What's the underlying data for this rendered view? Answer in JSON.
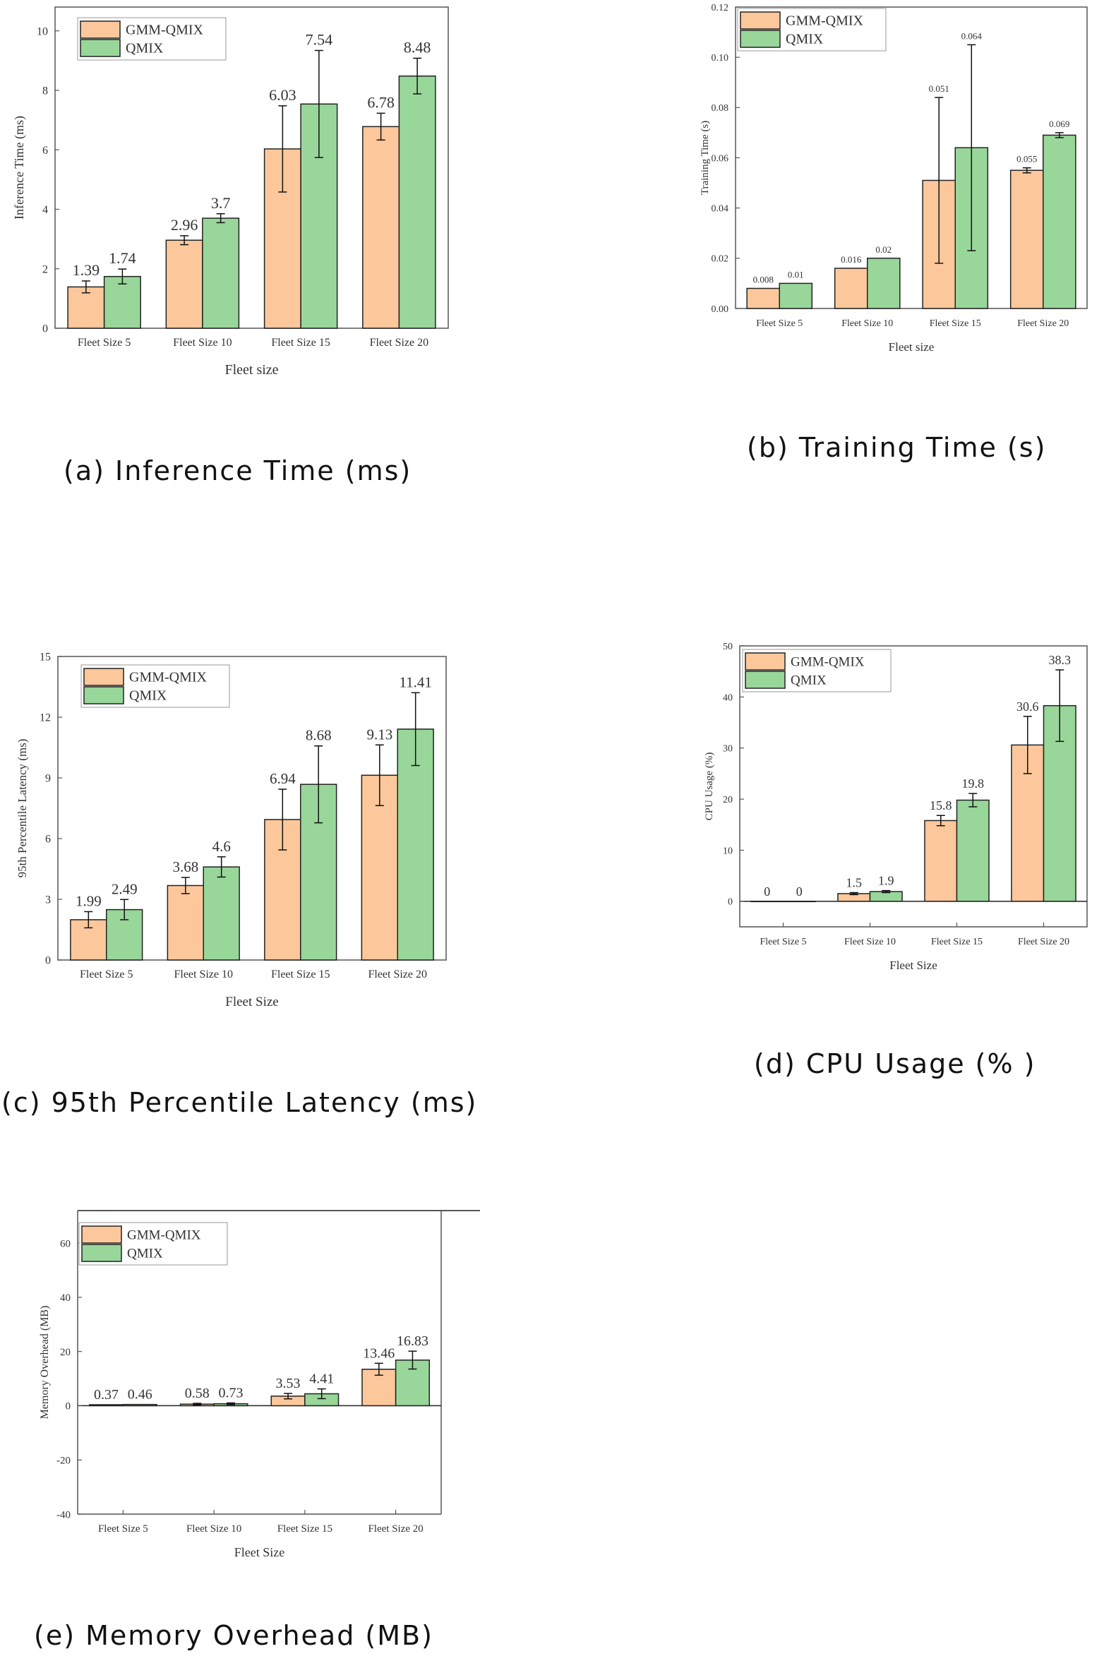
{
  "colors": {
    "gmm": "#fcc89b",
    "qmix": "#98d69a",
    "axis": "#555555"
  },
  "chart_data": [
    {
      "id": "a",
      "type": "bar",
      "title": "",
      "caption": "(a) Inference Time (ms)",
      "xlabel": "Fleet size",
      "ylabel": "Inference Time (ms)",
      "categories": [
        "Fleet Size 5",
        "Fleet Size 10",
        "Fleet Size 15",
        "Fleet Size 20"
      ],
      "ylim": [
        0,
        10.8
      ],
      "yticks": [
        "0",
        "2",
        "4",
        "6",
        "8",
        "10"
      ],
      "ytick_values": [
        0,
        2,
        4,
        6,
        8,
        10
      ],
      "legend": [
        "GMM-QMIX",
        "QMIX"
      ],
      "legend_position": "top-left",
      "series": [
        {
          "name": "GMM-QMIX",
          "values": [
            1.39,
            2.96,
            6.03,
            6.78
          ],
          "labels": [
            "1.39",
            "2.96",
            "6.03",
            "6.78"
          ],
          "errors": [
            0.2,
            0.15,
            1.45,
            0.45
          ]
        },
        {
          "name": "QMIX",
          "values": [
            1.74,
            3.7,
            7.54,
            8.48
          ],
          "labels": [
            "1.74",
            "3.7",
            "7.54",
            "8.48"
          ],
          "errors": [
            0.25,
            0.15,
            1.8,
            0.6
          ]
        }
      ]
    },
    {
      "id": "b",
      "type": "bar",
      "title": "",
      "caption": "(b) Training Time (s)",
      "xlabel": "Fleet size",
      "ylabel": "Training Time (s)",
      "categories": [
        "Fleet Size 5",
        "Fleet Size 10",
        "Fleet Size 15",
        "Fleet Size 20"
      ],
      "ylim": [
        0,
        0.12
      ],
      "yticks": [
        "0.00",
        "0.02",
        "0.04",
        "0.06",
        "0.08",
        "0.10",
        "0.12"
      ],
      "ytick_values": [
        0,
        0.02,
        0.04,
        0.06,
        0.08,
        0.1,
        0.12
      ],
      "legend": [
        "GMM-QMIX",
        "QMIX"
      ],
      "legend_position": "top-left",
      "series": [
        {
          "name": "GMM-QMIX",
          "values": [
            0.008,
            0.016,
            0.051,
            0.055
          ],
          "labels": [
            "0.008",
            "0.016",
            "0.051",
            "0.055"
          ],
          "errors": [
            0,
            0,
            0.033,
            0.001
          ]
        },
        {
          "name": "QMIX",
          "values": [
            0.01,
            0.02,
            0.064,
            0.069
          ],
          "labels": [
            "0.01",
            "0.02",
            "0.064",
            "0.069"
          ],
          "errors": [
            0,
            0,
            0.041,
            0.001
          ]
        }
      ]
    },
    {
      "id": "c",
      "type": "bar",
      "title": "",
      "caption": "(c) 95th Percentile Latency (ms)",
      "xlabel": "Fleet Size",
      "ylabel": "95th Percentile Latency (ms)",
      "categories": [
        "Fleet Size 5",
        "Fleet Size 10",
        "Fleet Size 15",
        "Fleet Size 20"
      ],
      "ylim": [
        0,
        15
      ],
      "yticks": [
        "0",
        "3",
        "6",
        "9",
        "12",
        "15"
      ],
      "ytick_values": [
        0,
        3,
        6,
        9,
        12,
        15
      ],
      "legend": [
        "GMM-QMIX",
        "QMIX"
      ],
      "legend_position": "top-left",
      "series": [
        {
          "name": "GMM-QMIX",
          "values": [
            1.99,
            3.68,
            6.94,
            9.13
          ],
          "labels": [
            "1.99",
            "3.68",
            "6.94",
            "9.13"
          ],
          "errors": [
            0.4,
            0.4,
            1.5,
            1.5
          ]
        },
        {
          "name": "QMIX",
          "values": [
            2.49,
            4.6,
            8.68,
            11.41
          ],
          "labels": [
            "2.49",
            "4.6",
            "8.68",
            "11.41"
          ],
          "errors": [
            0.5,
            0.5,
            1.9,
            1.8
          ]
        }
      ]
    },
    {
      "id": "d",
      "type": "bar",
      "title": "",
      "caption": "(d) CPU Usage (% )",
      "xlabel": "Fleet Size",
      "ylabel": "CPU Usage (%)",
      "categories": [
        "Fleet Size 5",
        "Fleet Size 10",
        "Fleet Size 15",
        "Fleet Size 20"
      ],
      "ylim": [
        -5,
        50
      ],
      "yticks": [
        "0",
        "10",
        "20",
        "30",
        "40",
        "50"
      ],
      "ytick_values": [
        0,
        10,
        20,
        30,
        40,
        50
      ],
      "legend": [
        "GMM-QMIX",
        "QMIX"
      ],
      "legend_position": "top-left",
      "series": [
        {
          "name": "GMM-QMIX",
          "values": [
            0,
            1.5,
            15.8,
            30.6
          ],
          "labels": [
            "0",
            "1.5",
            "15.8",
            "30.6"
          ],
          "errors": [
            0,
            0.2,
            1.0,
            5.6
          ]
        },
        {
          "name": "QMIX",
          "values": [
            0,
            1.9,
            19.8,
            38.3
          ],
          "labels": [
            "0",
            "1.9",
            "19.8",
            "38.3"
          ],
          "errors": [
            0,
            0.2,
            1.3,
            7.0
          ]
        }
      ]
    },
    {
      "id": "e",
      "type": "bar",
      "title": "",
      "caption": "(e) Memory Overhead (MB)",
      "xlabel": "Fleet Size",
      "ylabel": "Memory Overhead (MB)",
      "categories": [
        "Fleet Size 5",
        "Fleet Size 10",
        "Fleet Size 15",
        "Fleet Size 20"
      ],
      "ylim": [
        -40,
        72
      ],
      "yticks": [
        "-40",
        "-20",
        "0",
        "20",
        "40",
        "60"
      ],
      "ytick_values": [
        -40,
        -20,
        0,
        20,
        40,
        60
      ],
      "legend": [
        "GMM-QMIX",
        "QMIX"
      ],
      "legend_position": "top-left",
      "series": [
        {
          "name": "GMM-QMIX",
          "values": [
            0.37,
            0.58,
            3.53,
            13.46
          ],
          "labels": [
            "0.37",
            "0.58",
            "3.53",
            "13.46"
          ],
          "errors": [
            0,
            0.3,
            1.0,
            2.2
          ]
        },
        {
          "name": "QMIX",
          "values": [
            0.46,
            0.73,
            4.41,
            16.83
          ],
          "labels": [
            "0.46",
            "0.73",
            "4.41",
            "16.83"
          ],
          "errors": [
            0,
            0.3,
            1.8,
            3.3
          ]
        }
      ]
    }
  ]
}
